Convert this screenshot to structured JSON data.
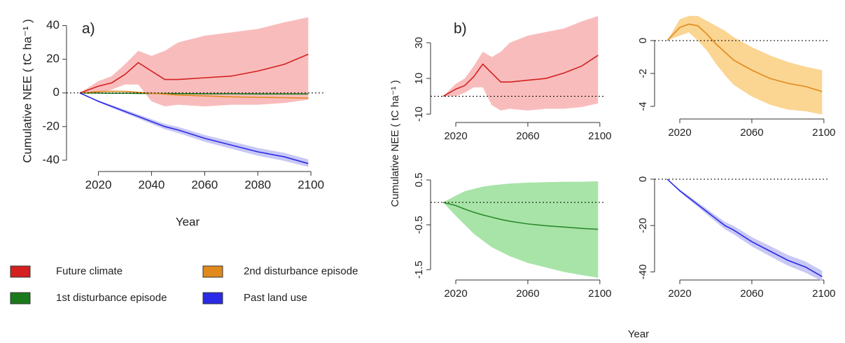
{
  "chart_data": [
    {
      "type": "line",
      "panel_label": "a)",
      "xlabel": "Year",
      "ylabel": "Cumulative NEE ( tC ha⁻¹ )",
      "x": [
        2013,
        2020,
        2025,
        2030,
        2035,
        2040,
        2045,
        2050,
        2060,
        2070,
        2080,
        2090,
        2099
      ],
      "xlim": [
        2008,
        2105.5
      ],
      "ylim": [
        -46.7,
        49
      ],
      "xticks": [
        2020,
        2040,
        2060,
        2080,
        2100
      ],
      "yticks": [
        -40,
        -20,
        0,
        20,
        40
      ],
      "hline": 0,
      "series": [
        {
          "name": "Future climate",
          "color": "#d42020",
          "band_color": "#f9bcbc",
          "values": [
            0,
            4,
            6,
            11,
            18,
            13,
            8,
            8,
            9,
            10,
            13,
            17,
            23
          ],
          "lower": [
            0,
            0,
            2,
            5,
            5,
            -5,
            -8,
            -7,
            -8,
            -7,
            -7,
            -6,
            -4
          ],
          "upper": [
            0,
            7,
            10,
            17,
            25,
            22,
            25,
            30,
            34,
            36,
            38,
            42,
            45
          ]
        },
        {
          "name": "1st disturbance episode",
          "color": "#1a7a1a",
          "values": [
            0,
            -0.1,
            -0.2,
            -0.2,
            -0.3,
            -0.3,
            -0.4,
            -0.4,
            -0.5,
            -0.5,
            -0.6,
            -0.6,
            -0.6
          ]
        },
        {
          "name": "2nd disturbance episode",
          "color": "#e08a1e",
          "values": [
            0,
            0.8,
            1,
            0.9,
            0.4,
            -0.2,
            -0.7,
            -1.2,
            -1.8,
            -2.3,
            -2.6,
            -2.8,
            -3.1
          ]
        },
        {
          "name": "Past land use",
          "color": "#2a2ae6",
          "band_color": "#c8c8f6",
          "values": [
            0,
            -5,
            -8,
            -11,
            -14,
            -17,
            -20,
            -22,
            -27,
            -31,
            -35,
            -38,
            -42
          ],
          "lower": [
            0,
            -5.5,
            -8.8,
            -12,
            -15.2,
            -18.4,
            -21.6,
            -23.8,
            -29,
            -33.2,
            -37.3,
            -40.4,
            -44
          ],
          "upper": [
            0,
            -4.5,
            -7.2,
            -10,
            -12.8,
            -15.6,
            -18.4,
            -20.2,
            -25,
            -28.8,
            -32.7,
            -35.6,
            -39.5
          ]
        }
      ]
    },
    {
      "type": "line",
      "panel_label": "b)",
      "xlabel": "Year",
      "ylabel": "Cumulative NEE ( tC ha⁻¹ )",
      "rotate_yticks": true,
      "x": [
        2013,
        2020,
        2025,
        2030,
        2035,
        2040,
        2045,
        2050,
        2060,
        2070,
        2080,
        2090,
        2099
      ],
      "xlim": [
        2006,
        2102
      ],
      "ylim": [
        -14.7,
        46.9
      ],
      "xticks": [
        2020,
        2060,
        2100
      ],
      "yticks": [
        -10,
        10,
        30
      ],
      "hline": 0,
      "series": [
        {
          "color": "#d42020",
          "band_color": "#f9bcbc",
          "values": [
            0,
            4,
            6,
            11,
            18,
            13,
            8,
            8,
            9,
            10,
            13,
            17,
            23
          ],
          "lower": [
            0,
            0,
            2,
            5,
            5,
            -5,
            -8,
            -7,
            -8,
            -7,
            -7,
            -6,
            -4
          ],
          "upper": [
            0,
            7,
            10,
            17,
            25,
            22,
            25,
            30,
            34,
            36,
            38,
            42,
            45
          ]
        }
      ]
    },
    {
      "type": "line",
      "rotate_yticks": true,
      "x": [
        2013,
        2020,
        2025,
        2030,
        2035,
        2040,
        2045,
        2050,
        2060,
        2070,
        2080,
        2090,
        2099
      ],
      "xlim": [
        2006,
        2102
      ],
      "ylim": [
        -4.77,
        1.7
      ],
      "xticks": [
        2020,
        2060,
        2100
      ],
      "yticks": [
        -4,
        -2,
        0
      ],
      "hline": 0,
      "series": [
        {
          "color": "#e08a1e",
          "band_color": "#fbd592",
          "values": [
            0,
            0.8,
            1,
            0.9,
            0.4,
            -0.2,
            -0.7,
            -1.2,
            -1.8,
            -2.3,
            -2.6,
            -2.8,
            -3.1
          ],
          "lower": [
            0,
            0.3,
            0.5,
            0,
            -0.6,
            -1.4,
            -2.1,
            -2.7,
            -3.4,
            -3.9,
            -4.2,
            -4.3,
            -4.5
          ],
          "upper": [
            0,
            1.3,
            1.5,
            1.5,
            1.2,
            0.9,
            0.6,
            0.2,
            -0.4,
            -0.9,
            -1.3,
            -1.6,
            -1.8
          ]
        }
      ]
    },
    {
      "type": "line",
      "rotate_yticks": true,
      "x": [
        2013,
        2020,
        2025,
        2030,
        2035,
        2040,
        2045,
        2050,
        2060,
        2070,
        2080,
        2090,
        2099
      ],
      "xlim": [
        2006,
        2102
      ],
      "ylim": [
        -1.73,
        0.61
      ],
      "xticks": [
        2020,
        2060,
        2100
      ],
      "yticks": [
        -1.5,
        -0.5,
        0.5
      ],
      "hline": 0,
      "series": [
        {
          "color": "#2e8b2e",
          "band_color": "#a8e4a8",
          "values": [
            0,
            -0.07,
            -0.15,
            -0.22,
            -0.28,
            -0.33,
            -0.38,
            -0.42,
            -0.48,
            -0.52,
            -0.55,
            -0.58,
            -0.6
          ],
          "lower": [
            0,
            -0.3,
            -0.5,
            -0.7,
            -0.85,
            -1,
            -1.1,
            -1.2,
            -1.35,
            -1.45,
            -1.55,
            -1.62,
            -1.68
          ],
          "upper": [
            0,
            0.15,
            0.25,
            0.3,
            0.35,
            0.38,
            0.4,
            0.42,
            0.44,
            0.45,
            0.46,
            0.46,
            0.47
          ]
        }
      ]
    },
    {
      "type": "line",
      "rotate_yticks": true,
      "x": [
        2013,
        2020,
        2025,
        2030,
        2035,
        2040,
        2045,
        2050,
        2060,
        2070,
        2080,
        2090,
        2099
      ],
      "xlim": [
        2006,
        2102
      ],
      "ylim": [
        -43.5,
        2.4
      ],
      "xticks": [
        2020,
        2060,
        2100
      ],
      "yticks": [
        -40,
        -20,
        0
      ],
      "hline": 0,
      "series": [
        {
          "color": "#2a2ae6",
          "band_color": "#c8c8f6",
          "values": [
            0,
            -5,
            -8,
            -11,
            -14,
            -17,
            -20,
            -22,
            -27,
            -31,
            -35,
            -38,
            -42
          ],
          "lower": [
            0,
            -5.5,
            -8.8,
            -12,
            -15.2,
            -18.4,
            -21.6,
            -23.8,
            -29,
            -33.2,
            -37.3,
            -40.4,
            -44
          ],
          "upper": [
            0,
            -4.5,
            -7.2,
            -10,
            -12.8,
            -15.6,
            -18.4,
            -20.2,
            -25,
            -28.8,
            -32.7,
            -35.6,
            -39.5
          ]
        }
      ]
    }
  ]
}
